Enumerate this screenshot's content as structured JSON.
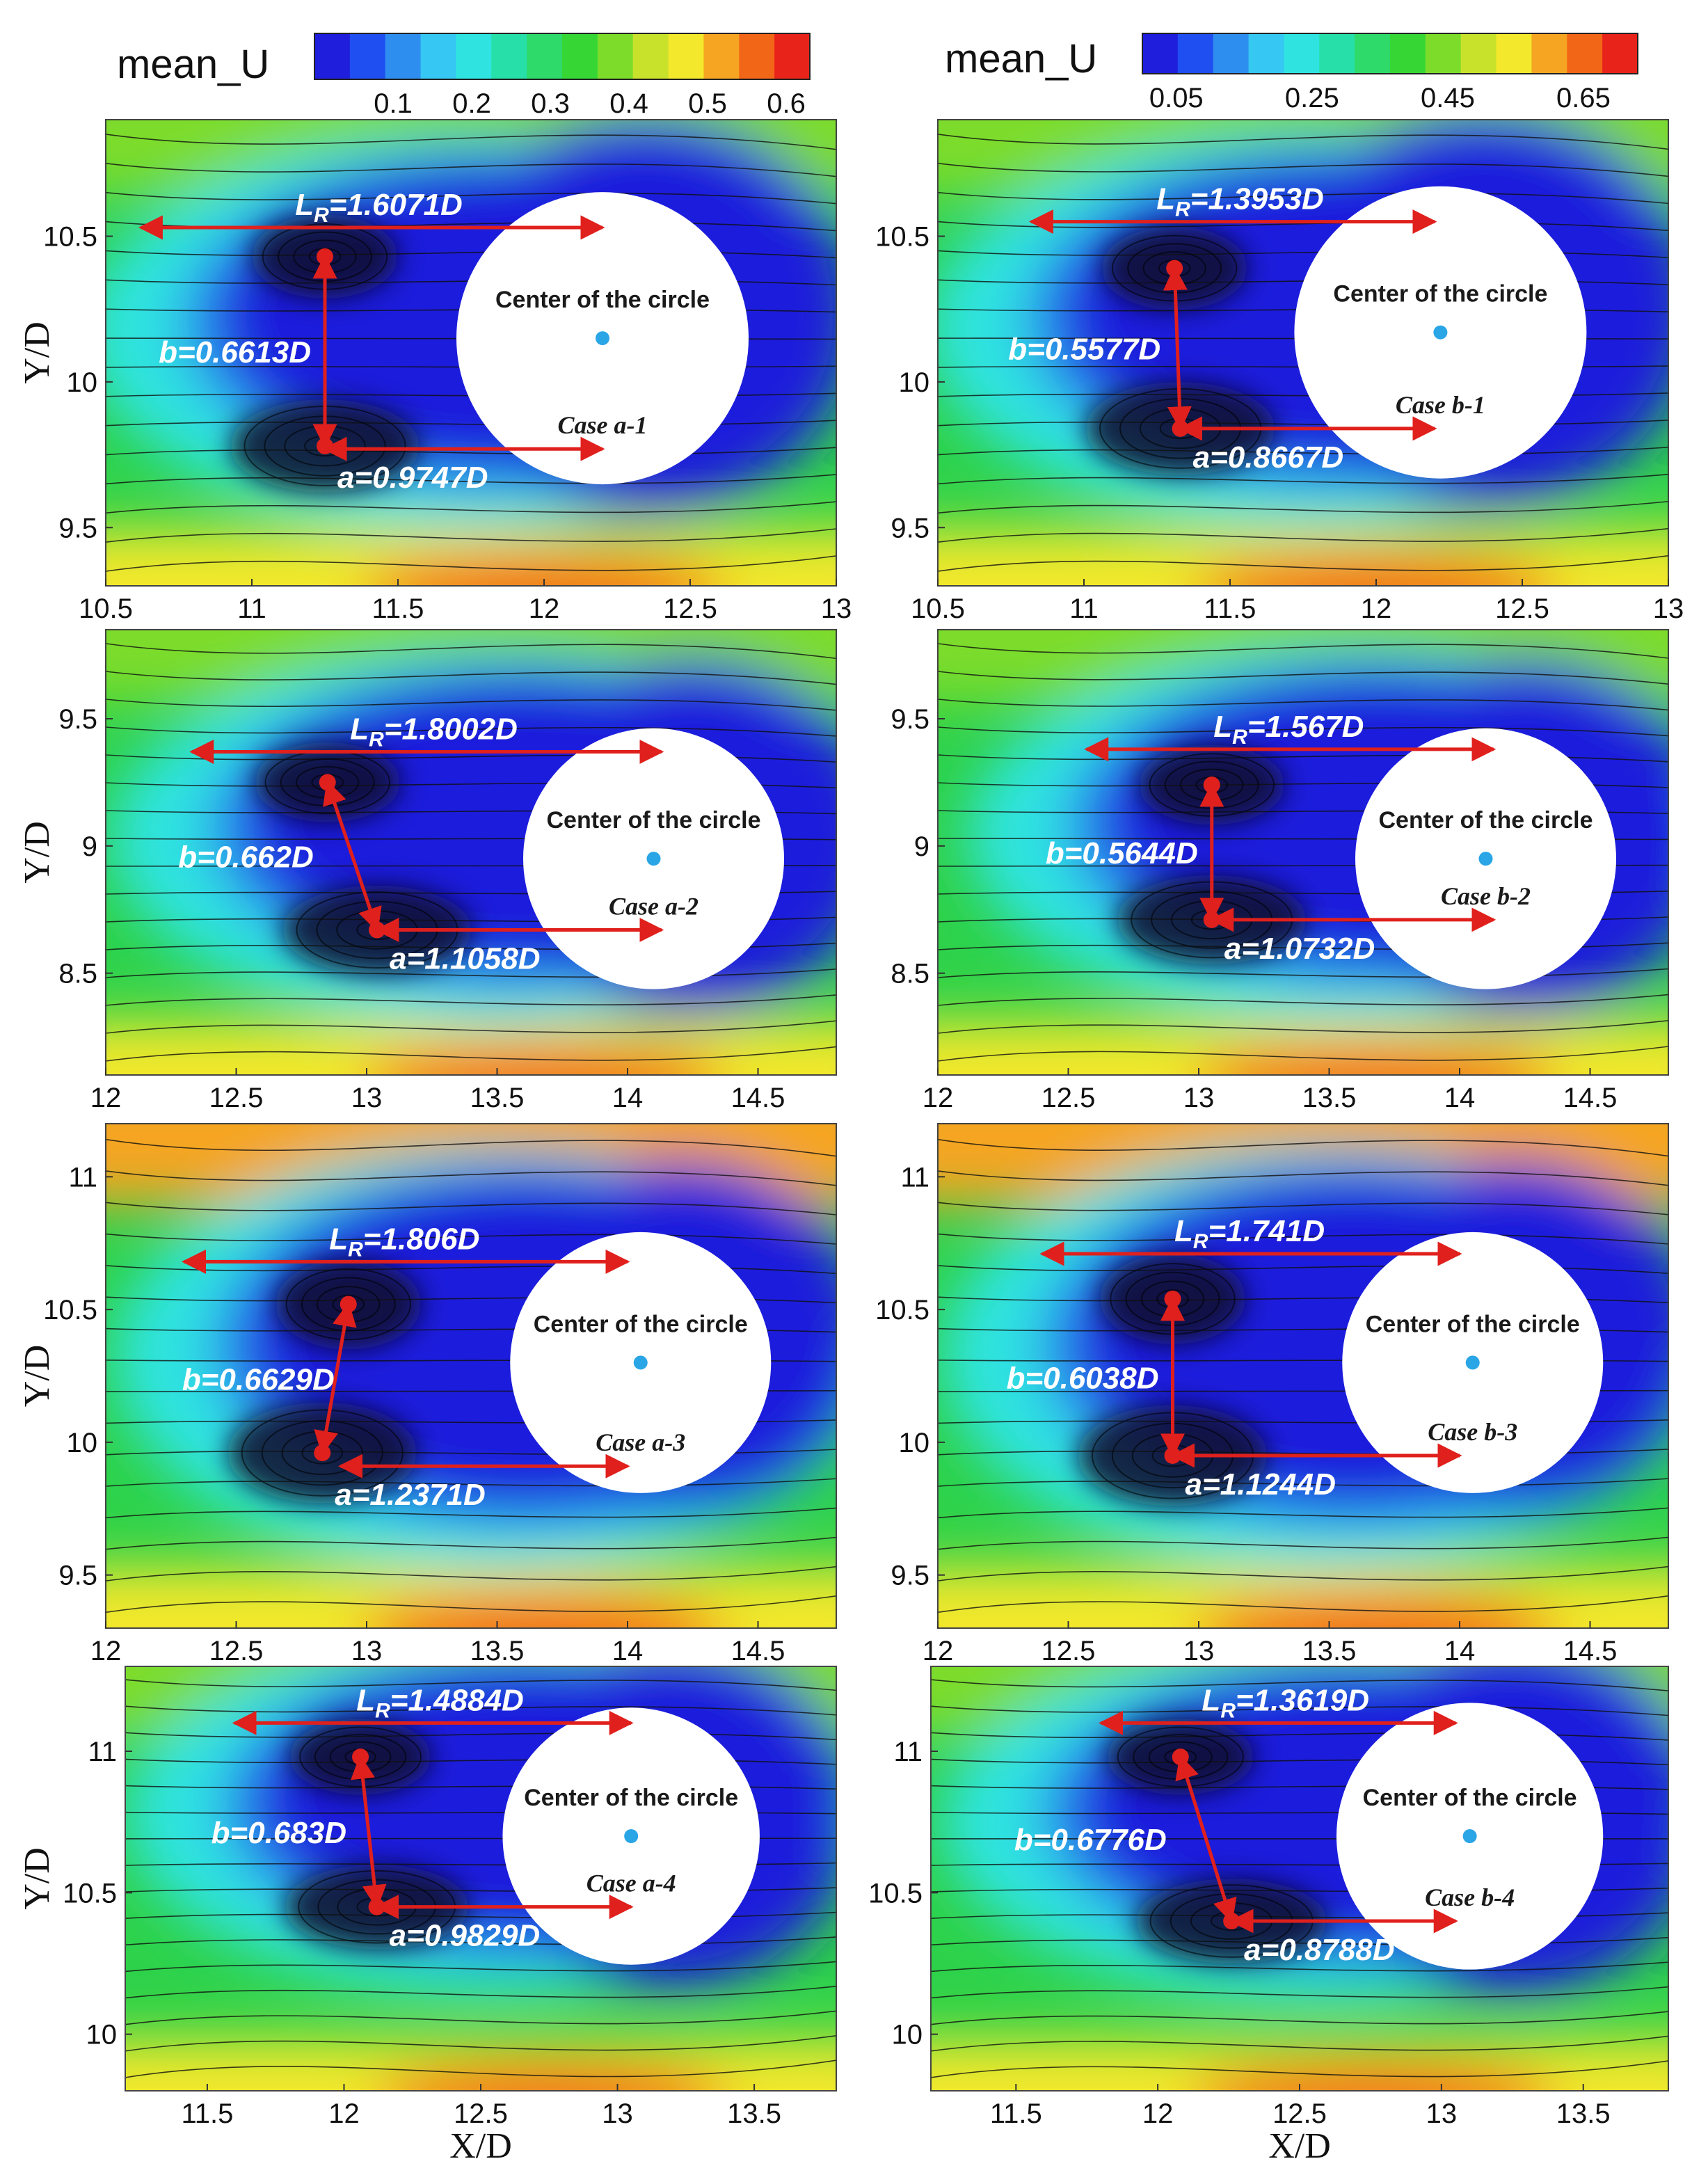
{
  "chart_data": [
    {
      "type": "contour",
      "case": "Case a-1",
      "colorbar_group": "a",
      "xlim": [
        10.5,
        13
      ],
      "ylim": [
        9.3,
        10.9
      ],
      "xticks": [
        "10.5",
        "11",
        "11.5",
        "12",
        "12.5",
        "13"
      ],
      "yticks": [
        "9.5",
        "10",
        "10.5"
      ],
      "ylabel": "Y/D",
      "xlabel": "",
      "LR_label": "=1.6071D",
      "b_label": "b=0.6613D",
      "a_label": "a=0.9747D",
      "center_label": "Center of the circle",
      "circle": {
        "cx": 12.2,
        "cy": 10.15,
        "r": 0.5
      },
      "vortex_upper": [
        11.25,
        10.43
      ],
      "vortex_lower": [
        11.25,
        9.78
      ],
      "lr_line": {
        "y": 10.53,
        "x0": 10.62,
        "x1": 12.2
      },
      "a_line": {
        "y": 9.77,
        "x0": 11.25,
        "x1": 12.2
      }
    },
    {
      "type": "contour",
      "case": "Case b-1",
      "colorbar_group": "b",
      "xlim": [
        10.5,
        13
      ],
      "ylim": [
        9.3,
        10.9
      ],
      "xticks": [
        "10.5",
        "11",
        "11.5",
        "12",
        "12.5",
        "13"
      ],
      "yticks": [
        "9.5",
        "10",
        "10.5"
      ],
      "ylabel": "",
      "xlabel": "",
      "LR_label": "=1.3953D",
      "b_label": "b=0.5577D",
      "a_label": "a=0.8667D",
      "center_label": "Center of the circle",
      "circle": {
        "cx": 12.22,
        "cy": 10.17,
        "r": 0.5
      },
      "vortex_upper": [
        11.31,
        10.39
      ],
      "vortex_lower": [
        11.33,
        9.84
      ],
      "lr_line": {
        "y": 10.55,
        "x0": 10.82,
        "x1": 12.2
      },
      "a_line": {
        "y": 9.84,
        "x0": 11.33,
        "x1": 12.2
      }
    },
    {
      "type": "contour",
      "case": "Case a-2",
      "colorbar_group": "a",
      "xlim": [
        12,
        14.8
      ],
      "ylim": [
        8.1,
        9.85
      ],
      "xticks": [
        "12",
        "12.5",
        "13",
        "13.5",
        "14",
        "14.5"
      ],
      "yticks": [
        "8.5",
        "9",
        "9.5"
      ],
      "ylabel": "Y/D",
      "xlabel": "",
      "LR_label": "=1.8002D",
      "b_label": "b=0.662D",
      "a_label": "a=1.1058D",
      "center_label": "Center of the circle",
      "circle": {
        "cx": 14.1,
        "cy": 8.95,
        "r": 0.5
      },
      "vortex_upper": [
        12.85,
        9.25
      ],
      "vortex_lower": [
        13.04,
        8.67
      ],
      "lr_line": {
        "y": 9.37,
        "x0": 12.33,
        "x1": 14.13
      },
      "a_line": {
        "y": 8.67,
        "x0": 13.04,
        "x1": 14.13
      }
    },
    {
      "type": "contour",
      "case": "Case b-2",
      "colorbar_group": "b",
      "xlim": [
        12,
        14.8
      ],
      "ylim": [
        8.1,
        9.85
      ],
      "xticks": [
        "12",
        "12.5",
        "13",
        "13.5",
        "14",
        "14.5"
      ],
      "yticks": [
        "8.5",
        "9",
        "9.5"
      ],
      "ylabel": "",
      "xlabel": "",
      "LR_label": "=1.567D",
      "b_label": "b=0.5644D",
      "a_label": "a=1.0732D",
      "center_label": "Center of the circle",
      "circle": {
        "cx": 14.1,
        "cy": 8.95,
        "r": 0.5
      },
      "vortex_upper": [
        13.05,
        9.24
      ],
      "vortex_lower": [
        13.05,
        8.71
      ],
      "lr_line": {
        "y": 9.38,
        "x0": 12.57,
        "x1": 14.13
      },
      "a_line": {
        "y": 8.71,
        "x0": 13.05,
        "x1": 14.13
      }
    },
    {
      "type": "contour",
      "case": "Case a-3",
      "colorbar_group": "a",
      "xlim": [
        12,
        14.8
      ],
      "ylim": [
        9.3,
        11.2
      ],
      "xticks": [
        "12",
        "12.5",
        "13",
        "13.5",
        "14",
        "14.5"
      ],
      "yticks": [
        "9.5",
        "10",
        "10.5",
        "11"
      ],
      "ylabel": "Y/D",
      "xlabel": "",
      "LR_label": "=1.806D",
      "b_label": "b=0.6629D",
      "a_label": "a=1.2371D",
      "center_label": "Center of the circle",
      "circle": {
        "cx": 14.05,
        "cy": 10.3,
        "r": 0.5
      },
      "vortex_upper": [
        12.93,
        10.52
      ],
      "vortex_lower": [
        12.83,
        9.96
      ],
      "lr_line": {
        "y": 10.68,
        "x0": 12.3,
        "x1": 14.0
      },
      "a_line": {
        "y": 9.91,
        "x0": 12.9,
        "x1": 14.0
      }
    },
    {
      "type": "contour",
      "case": "Case b-3",
      "colorbar_group": "b",
      "xlim": [
        12,
        14.8
      ],
      "ylim": [
        9.3,
        11.2
      ],
      "xticks": [
        "12",
        "12.5",
        "13",
        "13.5",
        "14",
        "14.5"
      ],
      "yticks": [
        "9.5",
        "10",
        "10.5",
        "11"
      ],
      "ylabel": "",
      "xlabel": "",
      "LR_label": "=1.741D",
      "b_label": "b=0.6038D",
      "a_label": "a=1.1244D",
      "center_label": "Center of the circle",
      "circle": {
        "cx": 14.05,
        "cy": 10.3,
        "r": 0.5
      },
      "vortex_upper": [
        12.9,
        10.54
      ],
      "vortex_lower": [
        12.9,
        9.95
      ],
      "lr_line": {
        "y": 10.71,
        "x0": 12.4,
        "x1": 14.0
      },
      "a_line": {
        "y": 9.95,
        "x0": 12.9,
        "x1": 14.0
      }
    },
    {
      "type": "contour",
      "case": "Case a-4",
      "colorbar_group": "a",
      "xlim": [
        11.2,
        13.8
      ],
      "ylim": [
        9.8,
        11.3
      ],
      "xticks": [
        "11.5",
        "12",
        "12.5",
        "13",
        "13.5"
      ],
      "yticks": [
        "10",
        "10.5",
        "11"
      ],
      "ylabel": "Y/D",
      "xlabel": "X/D",
      "LR_label": "=1.4884D",
      "b_label": "b=0.683D",
      "a_label": "a=0.9829D",
      "center_label": "Center of the circle",
      "circle": {
        "cx": 13.05,
        "cy": 10.7,
        "r": 0.47
      },
      "vortex_upper": [
        12.06,
        10.98
      ],
      "vortex_lower": [
        12.12,
        10.45
      ],
      "lr_line": {
        "y": 11.1,
        "x0": 11.6,
        "x1": 13.05
      },
      "a_line": {
        "y": 10.45,
        "x0": 12.12,
        "x1": 13.05
      }
    },
    {
      "type": "contour",
      "case": "Case b-4",
      "colorbar_group": "b",
      "xlim": [
        11.2,
        13.8
      ],
      "ylim": [
        9.8,
        11.3
      ],
      "xticks": [
        "11.5",
        "12",
        "12.5",
        "13",
        "13.5"
      ],
      "yticks": [
        "10",
        "10.5",
        "11"
      ],
      "ylabel": "",
      "xlabel": "X/D",
      "LR_label": "=1.3619D",
      "b_label": "b=0.6776D",
      "a_label": "a=0.8788D",
      "center_label": "Center of the circle",
      "circle": {
        "cx": 13.1,
        "cy": 10.7,
        "r": 0.47
      },
      "vortex_upper": [
        12.08,
        10.98
      ],
      "vortex_lower": [
        12.26,
        10.4
      ],
      "lr_line": {
        "y": 11.1,
        "x0": 11.8,
        "x1": 13.05
      },
      "a_line": {
        "y": 10.4,
        "x0": 12.26,
        "x1": 13.05
      }
    }
  ],
  "colorbar_a": {
    "title": "mean_U",
    "ticks": [
      "0.1",
      "0.2",
      "0.3",
      "0.4",
      "0.5",
      "0.6"
    ],
    "tick_values": [
      0.1,
      0.2,
      0.3,
      0.4,
      0.5,
      0.6
    ],
    "range": [
      0.0,
      0.63
    ]
  },
  "colorbar_b": {
    "title": "mean_U",
    "ticks": [
      "0.05",
      "0.25",
      "0.45",
      "0.65"
    ],
    "tick_values": [
      0.05,
      0.25,
      0.45,
      0.65
    ],
    "range": [
      0.0,
      0.73
    ]
  },
  "colors": [
    "#1e1edc",
    "#1f4ff0",
    "#2e8ef0",
    "#36c7f2",
    "#2fe4e0",
    "#27dfa8",
    "#2edb6a",
    "#36d635",
    "#7ddc2a",
    "#c8e22b",
    "#f3e82c",
    "#f5a522",
    "#f26618",
    "#e8231a"
  ],
  "LR_prefix": "L",
  "LR_subscript": "R"
}
